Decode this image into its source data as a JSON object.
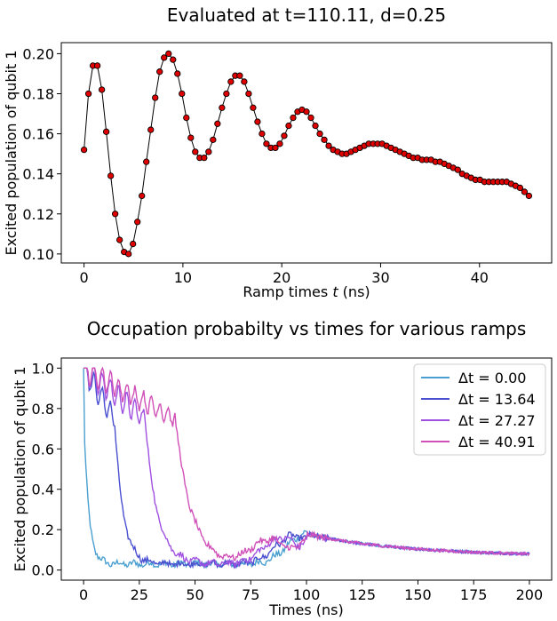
{
  "chart_data": [
    {
      "type": "line",
      "title": "Evaluated at t=110.11, d=0.25",
      "xlabel": "Ramp times t (ns)",
      "ylabel": "Excited population of qubit 1",
      "xlim": [
        -2.3,
        47.3
      ],
      "ylim": [
        0.0955,
        0.2055
      ],
      "xticks": [
        0,
        10,
        20,
        30,
        40
      ],
      "yticks": [
        0.1,
        0.12,
        0.14,
        0.16,
        0.18,
        0.2
      ],
      "ytick_labels": [
        "0.10",
        "0.12",
        "0.14",
        "0.16",
        "0.18",
        "0.20"
      ],
      "grid": false,
      "line_color": "#000000",
      "marker_color": "#e00000",
      "x": [
        0.0,
        0.45,
        0.9,
        1.35,
        1.8,
        2.25,
        2.7,
        3.15,
        3.6,
        4.05,
        4.5,
        4.95,
        5.4,
        5.85,
        6.3,
        6.75,
        7.2,
        7.65,
        8.1,
        8.55,
        9.0,
        9.45,
        9.9,
        10.35,
        10.8,
        11.25,
        11.7,
        12.15,
        12.6,
        13.05,
        13.5,
        13.95,
        14.4,
        14.85,
        15.3,
        15.75,
        16.2,
        16.65,
        17.1,
        17.55,
        18.0,
        18.45,
        18.9,
        19.35,
        19.8,
        20.25,
        20.7,
        21.15,
        21.6,
        22.05,
        22.5,
        22.95,
        23.4,
        23.85,
        24.3,
        24.75,
        25.2,
        25.65,
        26.1,
        26.55,
        27.0,
        27.45,
        27.9,
        28.35,
        28.8,
        29.25,
        29.7,
        30.15,
        30.6,
        31.05,
        31.5,
        31.95,
        32.4,
        32.85,
        33.3,
        33.75,
        34.2,
        34.65,
        35.1,
        35.55,
        36.0,
        36.45,
        36.9,
        37.35,
        37.8,
        38.25,
        38.7,
        39.15,
        39.6,
        40.05,
        40.5,
        40.95,
        41.4,
        41.85,
        42.3,
        42.75,
        43.2,
        43.65,
        44.1,
        44.55,
        45.0
      ],
      "y": [
        0.152,
        0.18,
        0.194,
        0.194,
        0.182,
        0.161,
        0.139,
        0.12,
        0.107,
        0.101,
        0.1,
        0.105,
        0.116,
        0.129,
        0.146,
        0.162,
        0.178,
        0.191,
        0.198,
        0.2,
        0.197,
        0.19,
        0.18,
        0.168,
        0.158,
        0.151,
        0.148,
        0.148,
        0.151,
        0.157,
        0.165,
        0.173,
        0.18,
        0.186,
        0.189,
        0.189,
        0.186,
        0.18,
        0.173,
        0.166,
        0.16,
        0.155,
        0.153,
        0.153,
        0.155,
        0.159,
        0.164,
        0.168,
        0.171,
        0.172,
        0.171,
        0.168,
        0.164,
        0.16,
        0.157,
        0.154,
        0.152,
        0.151,
        0.15,
        0.15,
        0.151,
        0.152,
        0.153,
        0.154,
        0.155,
        0.155,
        0.155,
        0.155,
        0.154,
        0.153,
        0.152,
        0.151,
        0.15,
        0.149,
        0.148,
        0.148,
        0.147,
        0.147,
        0.147,
        0.146,
        0.146,
        0.145,
        0.144,
        0.143,
        0.142,
        0.14,
        0.139,
        0.138,
        0.137,
        0.137,
        0.136,
        0.136,
        0.136,
        0.136,
        0.136,
        0.136,
        0.135,
        0.134,
        0.133,
        0.131,
        0.129
      ]
    },
    {
      "type": "line",
      "title": "Occupation probabilty vs times for various ramps",
      "xlabel": "Times (ns)",
      "ylabel": "Excited population of qubit 1",
      "xlim": [
        -10,
        210
      ],
      "ylim": [
        -0.05,
        1.05
      ],
      "xticks": [
        0,
        25,
        50,
        75,
        100,
        125,
        150,
        175,
        200
      ],
      "yticks": [
        0.0,
        0.2,
        0.4,
        0.6,
        0.8,
        1.0
      ],
      "ytick_labels": [
        "0.0",
        "0.2",
        "0.4",
        "0.6",
        "0.8",
        "1.0"
      ],
      "grid": false,
      "legend_position": "top-right",
      "series": [
        {
          "name": "Δt =  0.00",
          "ramp": 0.0,
          "color": "#4a9fd0"
        },
        {
          "name": "Δt =  13.64",
          "ramp": 13.64,
          "color": "#4a4fd0"
        },
        {
          "name": "Δt =  27.27",
          "ramp": 27.27,
          "color": "#a050e0"
        },
        {
          "name": "Δt =  40.91",
          "ramp": 40.91,
          "color": "#d050b8"
        }
      ]
    }
  ]
}
